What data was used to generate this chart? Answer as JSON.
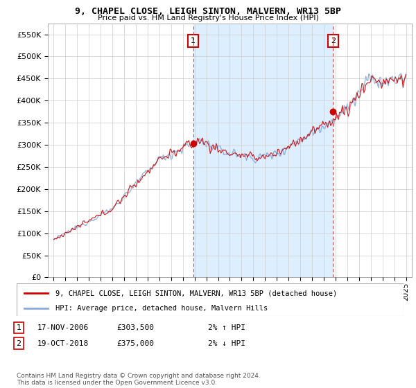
{
  "title_line1": "9, CHAPEL CLOSE, LEIGH SINTON, MALVERN, WR13 5BP",
  "title_line2": "Price paid vs. HM Land Registry's House Price Index (HPI)",
  "ylabel_ticks": [
    "£0",
    "£50K",
    "£100K",
    "£150K",
    "£200K",
    "£250K",
    "£300K",
    "£350K",
    "£400K",
    "£450K",
    "£500K",
    "£550K"
  ],
  "ytick_values": [
    0,
    50000,
    100000,
    150000,
    200000,
    250000,
    300000,
    350000,
    400000,
    450000,
    500000,
    550000
  ],
  "ylim": [
    0,
    575000
  ],
  "xlim_start": 1994.5,
  "xlim_end": 2025.5,
  "xtick_years": [
    1995,
    1996,
    1997,
    1998,
    1999,
    2000,
    2001,
    2002,
    2003,
    2004,
    2005,
    2006,
    2007,
    2008,
    2009,
    2010,
    2011,
    2012,
    2013,
    2014,
    2015,
    2016,
    2017,
    2018,
    2019,
    2020,
    2021,
    2022,
    2023,
    2024,
    2025
  ],
  "transaction1_x": 2006.88,
  "transaction1_y": 303500,
  "transaction1_label": "1",
  "transaction2_x": 2018.79,
  "transaction2_y": 375000,
  "transaction2_label": "2",
  "line_color_red": "#cc0000",
  "line_color_blue": "#88aadd",
  "vline_color": "#cc4444",
  "annotation_box_edgecolor": "#cc0000",
  "dot_color": "#cc0000",
  "bg_color": "#ffffff",
  "highlight_color": "#ddeeff",
  "grid_color": "#cccccc",
  "legend_label_red": "9, CHAPEL CLOSE, LEIGH SINTON, MALVERN, WR13 5BP (detached house)",
  "legend_label_blue": "HPI: Average price, detached house, Malvern Hills",
  "table_row1": [
    "1",
    "17-NOV-2006",
    "£303,500",
    "2% ↑ HPI"
  ],
  "table_row2": [
    "2",
    "19-OCT-2018",
    "£375,000",
    "2% ↓ HPI"
  ],
  "footnote": "Contains HM Land Registry data © Crown copyright and database right 2024.\nThis data is licensed under the Open Government Licence v3.0."
}
